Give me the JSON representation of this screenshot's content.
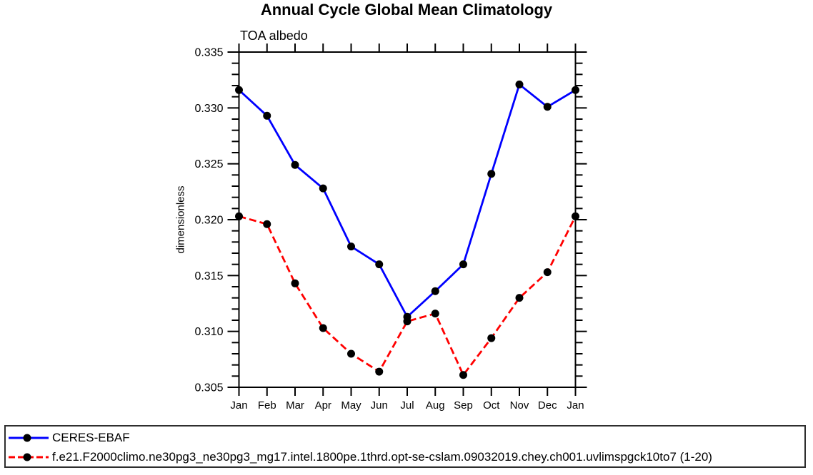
{
  "chart_data": {
    "type": "line",
    "title": "Annual Cycle Global Mean Climatology",
    "subtitle": "TOA albedo",
    "ylabel": "dimensionless",
    "xlabel": "",
    "categories": [
      "Jan",
      "Feb",
      "Mar",
      "Apr",
      "May",
      "Jun",
      "Jul",
      "Aug",
      "Sep",
      "Oct",
      "Nov",
      "Dec",
      "Jan"
    ],
    "series": [
      {
        "name": "CERES-EBAF",
        "color": "#0000ff",
        "line_style": "solid",
        "marker": "filled-circle",
        "marker_color": "#000000",
        "values": [
          0.3316,
          0.3293,
          0.3249,
          0.3228,
          0.3176,
          0.316,
          0.3113,
          0.3136,
          0.316,
          0.3241,
          0.3321,
          0.3301,
          0.3316
        ]
      },
      {
        "name": "f.e21.F2000climo.ne30pg3_ne30pg3_mg17.intel.1800pe.1thrd.opt-se-cslam.09032019.chey.ch001.uvlimspgck10to7 (1-20)",
        "color": "#ff0000",
        "line_style": "dashed",
        "marker": "filled-circle",
        "marker_color": "#000000",
        "values": [
          0.3203,
          0.3196,
          0.3143,
          0.3103,
          0.308,
          0.3064,
          0.3109,
          0.3116,
          0.3061,
          0.3094,
          0.313,
          0.3153,
          0.3203
        ]
      }
    ],
    "ylim": [
      0.305,
      0.335
    ],
    "ytick_major_interval": 0.005,
    "ytick_minor_interval": 0.001,
    "ytick_label_format": "3-decimals",
    "grid": false,
    "axis_color": "#000000",
    "legend_position": "bottom-full-width-box"
  }
}
